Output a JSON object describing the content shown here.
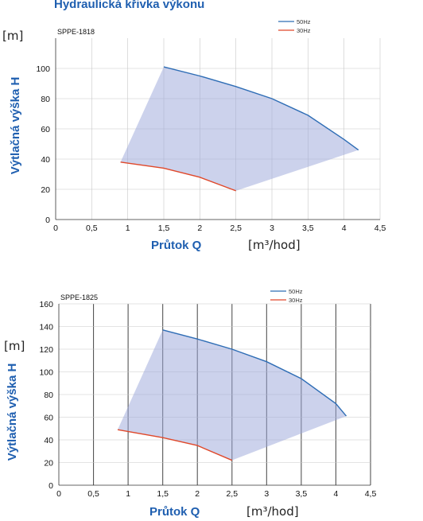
{
  "heading": "Hydraulická křivka výkonu",
  "chart_data": [
    {
      "type": "area",
      "title": "SPPE-1818",
      "ylabel": "Výtlačná výška H",
      "yunit": "[m]",
      "xlabel": "Průtok Q",
      "xunit": "[m³/hod]",
      "xlim": [
        0,
        4.5
      ],
      "ylim": [
        0,
        120
      ],
      "xticks": [
        "0",
        "0,5",
        "1",
        "1,5",
        "2",
        "2,5",
        "3",
        "3,5",
        "4",
        "4,5"
      ],
      "yticks": [
        "0",
        "20",
        "40",
        "60",
        "80",
        "100"
      ],
      "grid": true,
      "legend_position": "top-right",
      "series": [
        {
          "name": "50Hz",
          "color": "#2e6db5",
          "x": [
            1.5,
            2.0,
            2.5,
            3.0,
            3.5,
            4.0,
            4.2
          ],
          "y": [
            101,
            95,
            88,
            80,
            69,
            53,
            46
          ]
        },
        {
          "name": "30Hz",
          "color": "#e0482a",
          "x": [
            0.9,
            1.5,
            2.0,
            2.5
          ],
          "y": [
            38,
            34,
            28,
            19
          ]
        }
      ],
      "region_color": "#9aa6da"
    },
    {
      "type": "area",
      "title": "SPPE-1825",
      "ylabel": "Výtlačná výška H",
      "yunit": "[m]",
      "xlabel": "Průtok Q",
      "xunit": "[m³/hod]",
      "xlim": [
        0,
        4.5
      ],
      "ylim": [
        0,
        160
      ],
      "xticks": [
        "0",
        "0,5",
        "1",
        "1,5",
        "2",
        "2,5",
        "3",
        "3,5",
        "4",
        "4,5"
      ],
      "yticks": [
        "0",
        "20",
        "40",
        "60",
        "80",
        "100",
        "120",
        "140",
        "160"
      ],
      "grid": true,
      "legend_position": "top-right",
      "series": [
        {
          "name": "50Hz",
          "color": "#2e6db5",
          "x": [
            1.5,
            2.0,
            2.5,
            3.0,
            3.5,
            4.0,
            4.15
          ],
          "y": [
            137,
            129,
            120,
            109,
            94,
            72,
            61
          ]
        },
        {
          "name": "30Hz",
          "color": "#e0482a",
          "x": [
            0.85,
            1.5,
            2.0,
            2.5
          ],
          "y": [
            49,
            42,
            35,
            22
          ]
        }
      ],
      "region_color": "#9aa6da"
    }
  ]
}
